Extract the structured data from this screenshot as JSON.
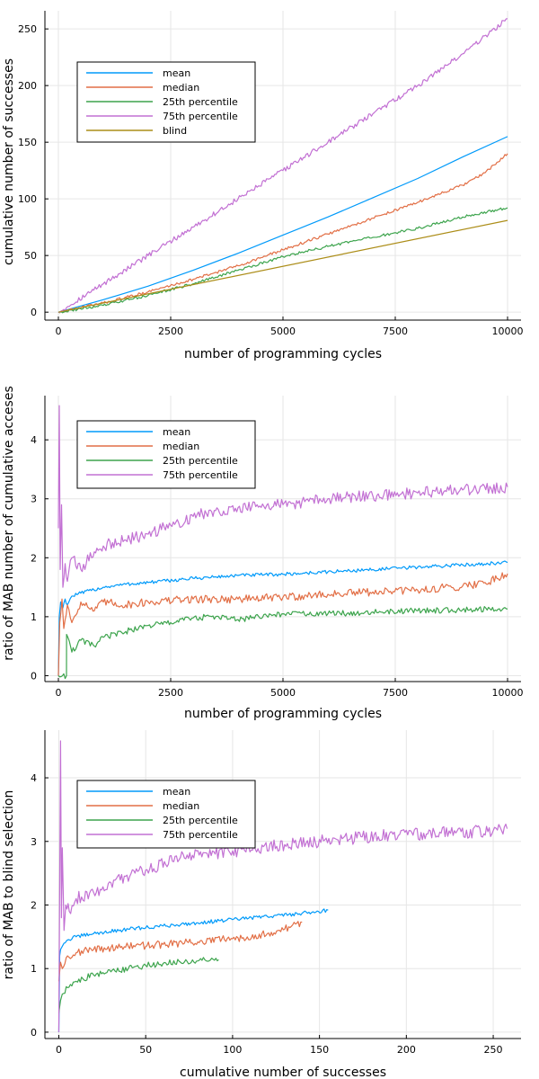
{
  "chart_data": [
    {
      "type": "line",
      "xlabel": "number of programming cycles",
      "ylabel": "cumulative number of successes",
      "xlim": [
        -300,
        10300
      ],
      "ylim": [
        -7,
        266
      ],
      "xticks": [
        0,
        2500,
        5000,
        7500,
        10000
      ],
      "xtick_labels": [
        "0",
        "2500",
        "5000",
        "7500",
        "10000"
      ],
      "yticks": [
        0,
        50,
        100,
        150,
        200,
        250
      ],
      "ytick_labels": [
        "0",
        "50",
        "100",
        "150",
        "200",
        "250"
      ],
      "grid": true,
      "legend_position": "top-left",
      "series": [
        {
          "name": "mean",
          "color": "#009AFA",
          "noise": 0,
          "x": [
            0,
            1000,
            2000,
            3000,
            4000,
            5000,
            6000,
            7000,
            8000,
            9000,
            10000
          ],
          "y": [
            0,
            11,
            23,
            37,
            52,
            68,
            84,
            101,
            118,
            137,
            155
          ]
        },
        {
          "name": "median",
          "color": "#E26F46",
          "noise": 1.2,
          "x": [
            0,
            1000,
            2000,
            3000,
            4000,
            5000,
            6000,
            7000,
            8000,
            9000,
            9500,
            10000
          ],
          "y": [
            0,
            8,
            18,
            29,
            41,
            55,
            69,
            83,
            97,
            112,
            123,
            140
          ]
        },
        {
          "name": "25th percentile",
          "color": "#3DA44D",
          "noise": 1.2,
          "x": [
            0,
            1000,
            2000,
            3000,
            4000,
            5000,
            6000,
            7000,
            8000,
            9000,
            10000
          ],
          "y": [
            0,
            6,
            15,
            25,
            37,
            49,
            58,
            66,
            74,
            84,
            92
          ]
        },
        {
          "name": "75th percentile",
          "color": "#C270D3",
          "noise": 2.2,
          "x": [
            0,
            1000,
            2000,
            3000,
            4000,
            5000,
            6000,
            7000,
            8000,
            9000,
            10000
          ],
          "y": [
            0,
            25,
            50,
            75,
            100,
            125,
            150,
            175,
            200,
            228,
            259
          ]
        },
        {
          "name": "blind",
          "color": "#AC8D18",
          "noise": 0,
          "x": [
            0,
            10000
          ],
          "y": [
            0,
            81
          ]
        }
      ]
    },
    {
      "type": "line",
      "xlabel": "number of programming cycles",
      "ylabel": "ratio of MAB number of cumulative acceses",
      "xlim": [
        -300,
        10300
      ],
      "ylim": [
        -0.1,
        4.75
      ],
      "xticks": [
        0,
        2500,
        5000,
        7500,
        10000
      ],
      "xtick_labels": [
        "0",
        "2500",
        "5000",
        "7500",
        "10000"
      ],
      "yticks": [
        0,
        1,
        2,
        3,
        4
      ],
      "ytick_labels": [
        "0",
        "1",
        "2",
        "3",
        "4"
      ],
      "grid": true,
      "legend_position": "top-left",
      "series": [
        {
          "name": "mean",
          "color": "#009AFA",
          "noise": 0.03,
          "x": [
            0,
            20,
            50,
            100,
            150,
            200,
            300,
            500,
            1000,
            1500,
            2000,
            3000,
            4000,
            5000,
            6000,
            7000,
            8000,
            9000,
            10000
          ],
          "y": [
            0,
            1.0,
            1.25,
            1.15,
            1.3,
            1.2,
            1.35,
            1.4,
            1.5,
            1.55,
            1.58,
            1.65,
            1.7,
            1.72,
            1.76,
            1.8,
            1.84,
            1.88,
            1.92
          ]
        },
        {
          "name": "median",
          "color": "#E26F46",
          "noise": 0.07,
          "x": [
            0,
            30,
            80,
            120,
            200,
            300,
            500,
            800,
            1000,
            1500,
            2000,
            3000,
            4000,
            5000,
            6000,
            7000,
            8000,
            9000,
            9500,
            10000
          ],
          "y": [
            0,
            0.9,
            1.3,
            0.8,
            1.2,
            0.9,
            1.25,
            1.1,
            1.25,
            1.2,
            1.25,
            1.3,
            1.3,
            1.33,
            1.38,
            1.42,
            1.45,
            1.52,
            1.58,
            1.73
          ]
        },
        {
          "name": "25th percentile",
          "color": "#3DA44D",
          "noise": 0.05,
          "x": [
            0,
            180,
            182,
            300,
            500,
            800,
            1000,
            1500,
            2000,
            2500,
            3000,
            3500,
            4000,
            5000,
            6000,
            7000,
            8000,
            9000,
            10000
          ],
          "y": [
            0,
            0,
            0.7,
            0.4,
            0.6,
            0.5,
            0.65,
            0.75,
            0.85,
            0.9,
            0.98,
            1.0,
            0.95,
            1.05,
            1.05,
            1.08,
            1.1,
            1.12,
            1.13
          ]
        },
        {
          "name": "75th percentile",
          "color": "#C270D3",
          "noise": 0.1,
          "x": [
            0,
            20,
            40,
            70,
            100,
            150,
            200,
            300,
            500,
            800,
            1000,
            1500,
            2000,
            2500,
            3000,
            3500,
            4000,
            5000,
            6000,
            7000,
            8000,
            9000,
            10000
          ],
          "y": [
            2.5,
            4.58,
            1.8,
            2.9,
            1.5,
            1.9,
            1.6,
            2.0,
            1.8,
            2.1,
            2.2,
            2.3,
            2.4,
            2.55,
            2.7,
            2.8,
            2.85,
            2.9,
            3.0,
            3.05,
            3.1,
            3.15,
            3.2
          ]
        }
      ]
    },
    {
      "type": "line",
      "xlabel": "cumulative number of successes",
      "ylabel": "ratio of MAB to blind selection",
      "xlim": [
        -8,
        266
      ],
      "ylim": [
        -0.1,
        4.75
      ],
      "xticks": [
        0,
        50,
        100,
        150,
        200,
        250
      ],
      "xtick_labels": [
        "0",
        "50",
        "100",
        "150",
        "200",
        "250"
      ],
      "yticks": [
        0,
        1,
        2,
        3,
        4
      ],
      "ytick_labels": [
        "0",
        "1",
        "2",
        "3",
        "4"
      ],
      "grid": true,
      "legend_position": "top-left",
      "series": [
        {
          "name": "mean",
          "color": "#009AFA",
          "noise": 0.03,
          "x": [
            0,
            0.5,
            1,
            2,
            3,
            5,
            10,
            20,
            40,
            60,
            80,
            100,
            120,
            140,
            155
          ],
          "y": [
            0,
            1.2,
            1.3,
            1.35,
            1.4,
            1.45,
            1.5,
            1.55,
            1.62,
            1.67,
            1.72,
            1.77,
            1.82,
            1.87,
            1.92
          ]
        },
        {
          "name": "median",
          "color": "#E26F46",
          "noise": 0.06,
          "x": [
            0,
            1,
            2,
            5,
            10,
            20,
            30,
            40,
            60,
            80,
            100,
            120,
            130,
            140
          ],
          "y": [
            0.8,
            1.1,
            1.0,
            1.2,
            1.25,
            1.3,
            1.33,
            1.35,
            1.38,
            1.42,
            1.47,
            1.55,
            1.62,
            1.73
          ]
        },
        {
          "name": "25th percentile",
          "color": "#3DA44D",
          "noise": 0.05,
          "x": [
            0,
            1,
            2,
            5,
            10,
            20,
            30,
            40,
            50,
            60,
            70,
            80,
            92
          ],
          "y": [
            0.3,
            0.5,
            0.6,
            0.7,
            0.8,
            0.9,
            0.95,
            1.0,
            1.05,
            1.08,
            1.1,
            1.12,
            1.14
          ]
        },
        {
          "name": "75th percentile",
          "color": "#C270D3",
          "noise": 0.1,
          "x": [
            0,
            1,
            1.5,
            2,
            3,
            4,
            6,
            10,
            20,
            30,
            50,
            70,
            100,
            130,
            160,
            190,
            220,
            250,
            258
          ],
          "y": [
            0,
            4.58,
            1.8,
            2.9,
            1.6,
            2.0,
            1.9,
            2.1,
            2.2,
            2.35,
            2.55,
            2.75,
            2.85,
            2.95,
            3.03,
            3.1,
            3.13,
            3.17,
            3.2
          ]
        }
      ]
    }
  ]
}
